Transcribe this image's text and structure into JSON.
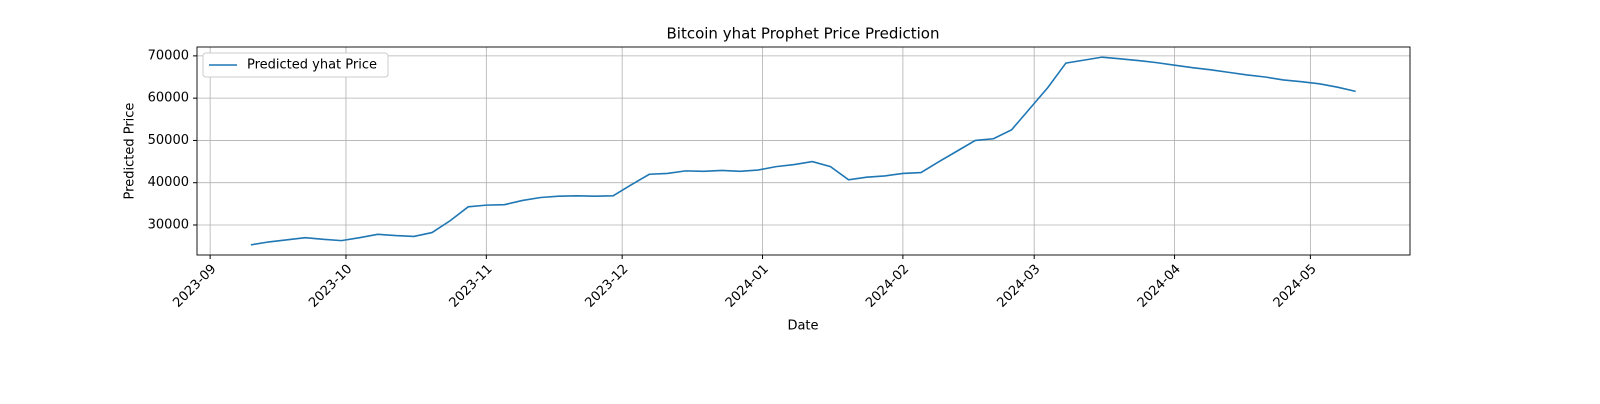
{
  "chart_data": {
    "type": "line",
    "title": "Bitcoin yhat Prophet Price Prediction",
    "x_label": "Date",
    "y_label": "Predicted Price",
    "x": [
      9,
      13,
      17,
      21,
      25,
      29,
      33,
      37,
      41,
      45,
      49,
      53,
      57,
      61,
      65,
      69,
      73,
      77,
      81,
      85,
      89,
      93,
      97,
      101,
      105,
      109,
      113,
      117,
      121,
      125,
      129,
      133,
      137,
      141,
      145,
      149,
      153,
      157,
      161,
      165,
      169,
      173,
      177,
      181,
      185,
      189,
      193,
      197,
      201,
      205,
      209,
      213,
      217,
      221,
      225,
      229,
      233,
      237,
      241,
      245,
      249,
      253
    ],
    "series": [
      {
        "name": "Predicted yhat Price",
        "color": "#1f77b4",
        "values": [
          25300,
          26000,
          26500,
          27000,
          26600,
          26300,
          27000,
          27800,
          27500,
          27300,
          28200,
          31000,
          34300,
          34700,
          34800,
          35800,
          36500,
          36800,
          36900,
          36800,
          36900,
          39500,
          42000,
          42200,
          42800,
          42700,
          42900,
          42700,
          43000,
          43800,
          44300,
          45000,
          43800,
          40700,
          41300,
          41600,
          42200,
          42400,
          45000,
          47500,
          50000,
          50400,
          52500,
          57500,
          62500,
          68300,
          69000,
          69700,
          69300,
          68900,
          68400,
          67800,
          67200,
          66700,
          66100,
          65500,
          65000,
          64300,
          63900,
          63400,
          62600,
          61600
        ]
      }
    ],
    "xlim": [
      -2.9,
      265
    ],
    "ylim": [
      22900,
      72100
    ],
    "xticks": [
      {
        "value": 0,
        "label": "2023-09"
      },
      {
        "value": 30,
        "label": "2023-10"
      },
      {
        "value": 61,
        "label": "2023-11"
      },
      {
        "value": 91,
        "label": "2023-12"
      },
      {
        "value": 122,
        "label": "2024-01"
      },
      {
        "value": 153,
        "label": "2024-02"
      },
      {
        "value": 182,
        "label": "2024-03"
      },
      {
        "value": 213,
        "label": "2024-04"
      },
      {
        "value": 243,
        "label": "2024-05"
      }
    ],
    "yticks": [
      30000,
      40000,
      50000,
      60000,
      70000
    ],
    "grid": true,
    "legend": "upper left"
  }
}
